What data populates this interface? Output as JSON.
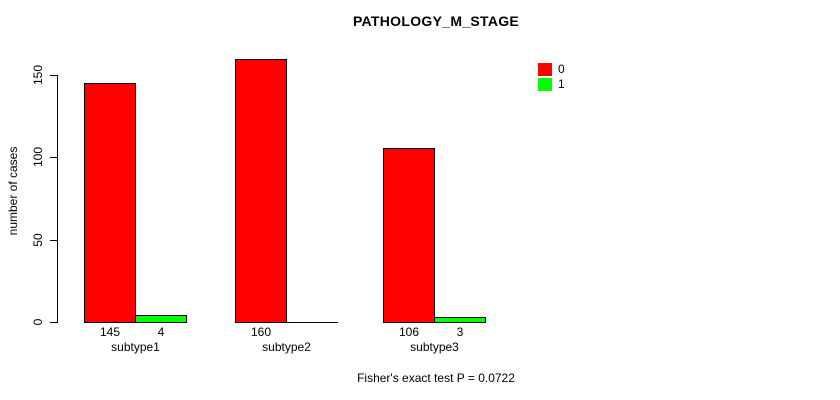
{
  "chart_data": {
    "type": "bar",
    "title": "PATHOLOGY_M_STAGE",
    "ylabel": "number of cases",
    "xlabel": "",
    "categories": [
      "subtype1",
      "subtype2",
      "subtype3"
    ],
    "series": [
      {
        "name": "0",
        "color": "#FF0000",
        "values": [
          145,
          160,
          106
        ]
      },
      {
        "name": "1",
        "color": "#00FF00",
        "values": [
          4,
          0,
          3
        ]
      }
    ],
    "visible_bar_value_labels": [
      "145",
      "4",
      "160",
      "106",
      "3"
    ],
    "yticks": [
      0,
      50,
      100,
      150
    ],
    "ylim": [
      0,
      150
    ],
    "grid": false,
    "legend_position": "top-right",
    "annotation": "Fisher's exact test P = 0.0722"
  },
  "colors": {
    "background": "#FFFFFF",
    "axis": "#000000",
    "text": "#000000",
    "bar_outline": "#000000",
    "series_0": "#FF0000",
    "series_1": "#00FF00"
  }
}
